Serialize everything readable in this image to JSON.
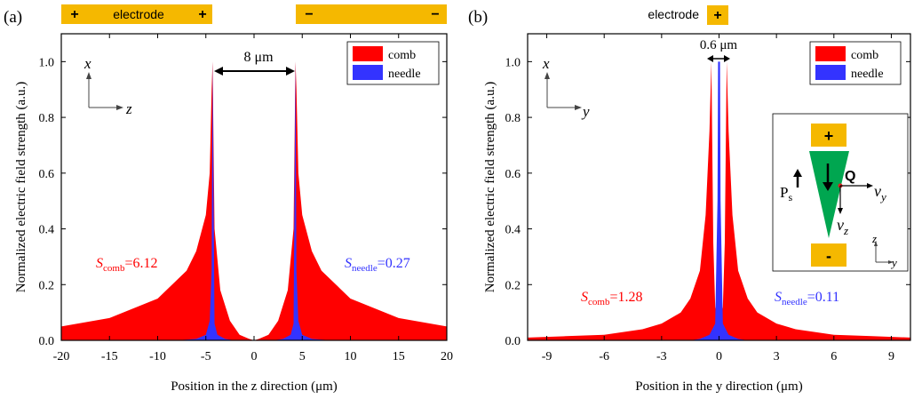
{
  "panels": [
    {
      "label": "(a)",
      "electrodes": [
        {
          "text": "electrode",
          "left_sign": "+",
          "right_sign": "+"
        },
        {
          "text": "",
          "left_sign": "−",
          "right_sign": "−"
        }
      ],
      "legend": [
        {
          "name": "comb",
          "color": "#ff0000"
        },
        {
          "name": "needle",
          "color": "#3333ff"
        }
      ],
      "annotations": {
        "gap": "8 μm",
        "s_comb_sub": "comb",
        "s_comb_val": "=6.12",
        "s_needle_sub": "needle",
        "s_needle_val": "=0.27",
        "axis_v": "x",
        "axis_h": "z"
      }
    },
    {
      "label": "(b)",
      "electrodes": [
        {
          "text": "electrode",
          "sign": "+"
        }
      ],
      "legend": [
        {
          "name": "comb",
          "color": "#ff0000"
        },
        {
          "name": "needle",
          "color": "#3333ff"
        }
      ],
      "annotations": {
        "gap": "0.6 μm",
        "s_comb_sub": "comb",
        "s_comb_val": "=1.28",
        "s_needle_sub": "needle",
        "s_needle_val": "=0.11",
        "axis_v": "x",
        "axis_h": "y"
      },
      "inset": {
        "plus": "+",
        "minus": "-",
        "Q": "Q",
        "P": "P",
        "P_sub": "s",
        "v": "v",
        "vy_sub": "y",
        "vz_sub": "z",
        "axis_v": "z",
        "axis_h": "y",
        "colors": {
          "electrode": "#f5b800",
          "needle": "#00a650",
          "charge": "#e02020"
        }
      }
    }
  ],
  "chart_data": [
    {
      "type": "area",
      "title": "",
      "xlabel": "Position in the z direction (μm)",
      "ylabel": "Normalized electric field strength (a.u.)",
      "xlim": [
        -20,
        20
      ],
      "ylim": [
        0,
        1.1
      ],
      "xticks": [
        -20,
        -15,
        -10,
        -5,
        0,
        5,
        10,
        15,
        20
      ],
      "yticks": [
        0.0,
        0.2,
        0.4,
        0.6,
        0.8,
        1.0
      ],
      "series": [
        {
          "name": "comb",
          "color": "#ff0000",
          "x": [
            -20,
            -15,
            -10,
            -7,
            -6,
            -5,
            -4.6,
            -4.4,
            -4.3,
            -4.1,
            -3.5,
            -2.5,
            -1.5,
            -0.5,
            0,
            0.5,
            1.5,
            2.5,
            3.5,
            4.1,
            4.3,
            4.4,
            4.6,
            5,
            6,
            7,
            10,
            15,
            20
          ],
          "y": [
            0.05,
            0.08,
            0.15,
            0.25,
            0.32,
            0.45,
            0.6,
            0.9,
            1.0,
            0.4,
            0.18,
            0.07,
            0.02,
            0.005,
            0.0,
            0.005,
            0.02,
            0.07,
            0.18,
            0.4,
            1.0,
            0.9,
            0.6,
            0.45,
            0.32,
            0.25,
            0.15,
            0.08,
            0.05
          ]
        },
        {
          "name": "needle",
          "color": "#3333ff",
          "x": [
            -20,
            -8,
            -6,
            -5,
            -4.6,
            -4.4,
            -4.3,
            -4.1,
            -3.8,
            -3.0,
            -2.0,
            0,
            2.0,
            3.0,
            3.8,
            4.1,
            4.3,
            4.4,
            4.6,
            5,
            6,
            8,
            20
          ],
          "y": [
            0,
            0.0,
            0.005,
            0.02,
            0.07,
            0.25,
            1.0,
            0.06,
            0.02,
            0.005,
            0,
            0,
            0,
            0.005,
            0.02,
            0.06,
            1.0,
            0.25,
            0.07,
            0.02,
            0.005,
            0.0,
            0
          ]
        }
      ]
    },
    {
      "type": "area",
      "title": "",
      "xlabel": "Position in the y direction (μm)",
      "ylabel": "Normalized electric field strength (a.u.)",
      "xlim": [
        -10,
        10
      ],
      "ylim": [
        0,
        1.1
      ],
      "xticks": [
        -9,
        -6,
        -3,
        0,
        3,
        6,
        9
      ],
      "yticks": [
        0.0,
        0.2,
        0.4,
        0.6,
        0.8,
        1.0
      ],
      "series": [
        {
          "name": "comb",
          "color": "#ff0000",
          "x": [
            -10,
            -8,
            -6,
            -4,
            -3,
            -2,
            -1.5,
            -1,
            -0.7,
            -0.5,
            -0.4,
            -0.3,
            -0.2,
            0,
            0.2,
            0.3,
            0.4,
            0.5,
            0.7,
            1,
            1.5,
            2,
            3,
            4,
            6,
            8,
            10
          ],
          "y": [
            0.01,
            0.015,
            0.02,
            0.04,
            0.06,
            0.1,
            0.15,
            0.25,
            0.45,
            0.75,
            1.0,
            0.35,
            0.12,
            0.02,
            0.12,
            0.35,
            1.0,
            0.75,
            0.45,
            0.25,
            0.15,
            0.1,
            0.06,
            0.04,
            0.02,
            0.015,
            0.01
          ]
        },
        {
          "name": "needle",
          "color": "#3333ff",
          "x": [
            -10,
            -1.5,
            -1,
            -0.5,
            -0.2,
            -0.08,
            -0.05,
            0,
            0.05,
            0.08,
            0.2,
            0.5,
            1,
            1.5,
            10
          ],
          "y": [
            0,
            0.0,
            0.005,
            0.02,
            0.06,
            0.5,
            1.0,
            1.0,
            1.0,
            0.5,
            0.06,
            0.02,
            0.005,
            0.0,
            0
          ]
        }
      ]
    }
  ]
}
